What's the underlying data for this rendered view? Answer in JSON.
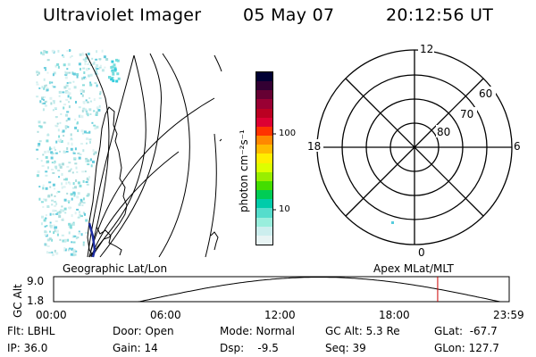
{
  "header": {
    "title": "Ultraviolet Imager",
    "date": "05 May 07",
    "time": "20:12:56 UT"
  },
  "colorbar": {
    "label": "photon cm⁻²s⁻¹",
    "ticks": [
      "100",
      "10"
    ],
    "colors": [
      "#000033",
      "#330033",
      "#660033",
      "#990033",
      "#bb0022",
      "#dd0033",
      "#ff3300",
      "#ff8800",
      "#ffbb00",
      "#ffee00",
      "#ddff00",
      "#99ee00",
      "#44dd00",
      "#00cc55",
      "#00ccaa",
      "#55ddcc",
      "#99eedd",
      "#cceeee",
      "#e8f4f4"
    ]
  },
  "polar_plot": {
    "mlt_labels": {
      "top": "12",
      "left": "18",
      "right": "6",
      "bottom": "0"
    },
    "lat_labels": [
      "60",
      "70",
      "80"
    ]
  },
  "map_labels": {
    "left": "Geographic Lat/Lon",
    "right": "Apex MLat/MLT"
  },
  "timeline": {
    "ylabel": "GC Alt",
    "ymax": "9.0",
    "ymin": "1.8",
    "time_ticks": [
      "00:00",
      "06:00",
      "12:00",
      "18:00",
      "23:59"
    ],
    "current_time_fraction": 0.843,
    "line_color": "#cc0000"
  },
  "info": {
    "row1": {
      "filter": "Flt: LBHL",
      "door": "Door: Open",
      "mode": "Mode: Normal",
      "gcalt": "GC Alt: 5.3 Re",
      "glat": "GLat:  -67.7"
    },
    "row2": {
      "ip": "IP: 36.0",
      "gain": "Gain: 14",
      "dsp": "Dsp:    -9.5",
      "seq": "Seq: 39",
      "glon": "GLon: 127.7"
    }
  }
}
